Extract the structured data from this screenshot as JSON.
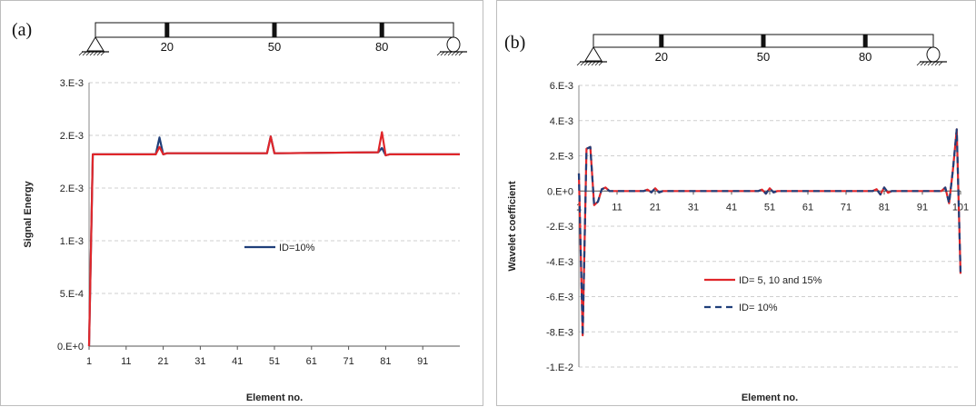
{
  "chart_data": [
    {
      "type": "line",
      "panel_label": "(a)",
      "xlabel": "Element no.",
      "ylabel": "Signal Energy",
      "xlim": [
        1,
        101
      ],
      "ylim": [
        0,
        0.0025
      ],
      "x_ticks": [
        1,
        11,
        21,
        31,
        41,
        51,
        61,
        71,
        81,
        91
      ],
      "x_tick_labels": [
        "1",
        "11",
        "21",
        "31",
        "41",
        "51",
        "61",
        "71",
        "81",
        "91"
      ],
      "y_ticks": [
        0,
        0.0005,
        0.001,
        0.0015,
        0.002,
        0.0025
      ],
      "y_tick_labels": [
        "0.E+0",
        "5.E-4",
        "1.E-3",
        "2.E-3",
        "2.E-3",
        "3.E-3"
      ],
      "grid": "horizontal",
      "legend_position": "center",
      "beam": {
        "marks": [
          "20",
          "50",
          "80"
        ]
      },
      "series": [
        {
          "name": "ID=10%",
          "color": "#1f3f7a",
          "dash": "solid",
          "x": [
            1,
            2,
            19,
            20,
            21,
            22,
            49,
            50,
            51,
            52,
            79,
            80,
            81,
            82,
            101
          ],
          "y": [
            0,
            0.00182,
            0.00182,
            0.00198,
            0.00182,
            0.00183,
            0.00183,
            0.00199,
            0.00183,
            0.00183,
            0.00184,
            0.00188,
            0.00181,
            0.00182,
            0.00182
          ]
        },
        {
          "name": "",
          "color": "#e0262a",
          "dash": "solid",
          "x": [
            1,
            2,
            19,
            20,
            21,
            22,
            49,
            50,
            51,
            52,
            79,
            80,
            81,
            82,
            101
          ],
          "y": [
            0,
            0.00182,
            0.00182,
            0.00189,
            0.00182,
            0.00183,
            0.00183,
            0.00199,
            0.00183,
            0.00183,
            0.00184,
            0.00203,
            0.00181,
            0.00182,
            0.00182
          ]
        }
      ]
    },
    {
      "type": "line",
      "panel_label": "(b)",
      "xlabel": "Element no.",
      "ylabel": "Wavelet coefficient",
      "xlim": [
        1,
        101
      ],
      "ylim": [
        -0.01,
        0.006
      ],
      "x_ticks": [
        1,
        11,
        21,
        31,
        41,
        51,
        61,
        71,
        81,
        91,
        101
      ],
      "x_tick_labels": [
        "1",
        "11",
        "21",
        "31",
        "41",
        "51",
        "61",
        "71",
        "81",
        "91",
        "101"
      ],
      "y_ticks": [
        -0.01,
        -0.008,
        -0.006,
        -0.004,
        -0.002,
        0,
        0.002,
        0.004,
        0.006
      ],
      "y_tick_labels": [
        "-1.E-2",
        "-8.E-3",
        "-6.E-3",
        "-4.E-3",
        "-2.E-3",
        "0.E+0",
        "2.E-3",
        "4.E-3",
        "6.E-3"
      ],
      "grid": "horizontal",
      "legend_position": "bottom-center",
      "beam": {
        "marks": [
          "20",
          "50",
          "80"
        ]
      },
      "series": [
        {
          "name": "ID= 5, 10 and 15%",
          "color": "#e0262a",
          "dash": "solid",
          "x": [
            1,
            2,
            3,
            4,
            5,
            6,
            7,
            8,
            9,
            10,
            18,
            19,
            20,
            21,
            22,
            23,
            48,
            49,
            50,
            51,
            52,
            53,
            78,
            79,
            80,
            81,
            82,
            83,
            96,
            97,
            98,
            99,
            100,
            101
          ],
          "y": [
            0.001,
            -0.0082,
            0.0024,
            0.0025,
            -0.0008,
            -0.0006,
            0.0001,
            0.0002,
            0,
            0,
            0,
            8e-05,
            -8e-05,
            0.00015,
            -8e-05,
            0,
            0,
            8e-05,
            -0.00015,
            0.00015,
            -8e-05,
            0,
            0,
            0.0001,
            -0.0002,
            0.0002,
            -0.0001,
            0,
            0,
            0.0002,
            -0.0007,
            0.0012,
            0.0035,
            -0.0047
          ]
        },
        {
          "name": "ID= 10%",
          "color": "#1f3f7a",
          "dash": "dashed",
          "x": [
            1,
            2,
            3,
            4,
            5,
            6,
            7,
            8,
            9,
            10,
            18,
            19,
            20,
            21,
            22,
            23,
            48,
            49,
            50,
            51,
            52,
            53,
            78,
            79,
            80,
            81,
            82,
            83,
            96,
            97,
            98,
            99,
            100,
            101
          ],
          "y": [
            0.001,
            -0.0082,
            0.0024,
            0.0025,
            -0.0008,
            -0.0006,
            0.0001,
            0.0002,
            0,
            0,
            0,
            8e-05,
            -8e-05,
            0.00015,
            -8e-05,
            0,
            0,
            8e-05,
            -0.00015,
            0.00015,
            -8e-05,
            0,
            0,
            0.0001,
            -0.0002,
            0.0002,
            -0.0001,
            0,
            0,
            0.0002,
            -0.0007,
            0.0012,
            0.0035,
            -0.0047
          ]
        }
      ]
    }
  ]
}
